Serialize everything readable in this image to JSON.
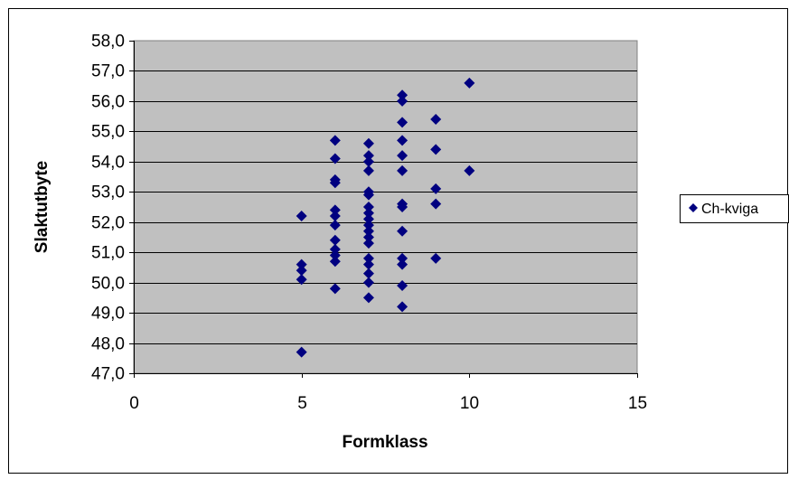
{
  "chart_data": {
    "type": "scatter",
    "title": "",
    "xlabel": "Formklass",
    "ylabel": "Slaktutbyte",
    "xlim": [
      0,
      15
    ],
    "ylim": [
      47.0,
      58.0
    ],
    "x_ticks": [
      "0",
      "5",
      "10",
      "15"
    ],
    "y_ticks": [
      "47,0",
      "48,0",
      "49,0",
      "50,0",
      "51,0",
      "52,0",
      "53,0",
      "54,0",
      "55,0",
      "56,0",
      "57,0",
      "58,0"
    ],
    "grid": "horizontal",
    "plot_background": "#c0c0c0",
    "legend_position": "right",
    "series": [
      {
        "name": "Ch-kviga",
        "color": "#000080",
        "marker": "diamond",
        "points": [
          [
            5,
            47.7
          ],
          [
            5,
            50.1
          ],
          [
            5,
            50.4
          ],
          [
            5,
            50.6
          ],
          [
            5,
            52.2
          ],
          [
            6,
            49.8
          ],
          [
            6,
            50.7
          ],
          [
            6,
            50.9
          ],
          [
            6,
            51.1
          ],
          [
            6,
            51.4
          ],
          [
            6,
            51.9
          ],
          [
            6,
            52.2
          ],
          [
            6,
            52.4
          ],
          [
            6,
            53.3
          ],
          [
            6,
            53.4
          ],
          [
            6,
            54.1
          ],
          [
            6,
            54.7
          ],
          [
            7,
            49.5
          ],
          [
            7,
            50.0
          ],
          [
            7,
            50.3
          ],
          [
            7,
            50.6
          ],
          [
            7,
            50.8
          ],
          [
            7,
            51.3
          ],
          [
            7,
            51.5
          ],
          [
            7,
            51.7
          ],
          [
            7,
            51.9
          ],
          [
            7,
            52.1
          ],
          [
            7,
            52.3
          ],
          [
            7,
            52.5
          ],
          [
            7,
            52.9
          ],
          [
            7,
            53.0
          ],
          [
            7,
            53.7
          ],
          [
            7,
            54.0
          ],
          [
            7,
            54.2
          ],
          [
            7,
            54.6
          ],
          [
            8,
            49.2
          ],
          [
            8,
            49.9
          ],
          [
            8,
            50.6
          ],
          [
            8,
            50.8
          ],
          [
            8,
            51.7
          ],
          [
            8,
            52.5
          ],
          [
            8,
            52.6
          ],
          [
            8,
            53.7
          ],
          [
            8,
            54.2
          ],
          [
            8,
            54.7
          ],
          [
            8,
            55.3
          ],
          [
            8,
            56.0
          ],
          [
            8,
            56.2
          ],
          [
            9,
            50.8
          ],
          [
            9,
            52.6
          ],
          [
            9,
            53.1
          ],
          [
            9,
            54.4
          ],
          [
            9,
            55.4
          ],
          [
            10,
            53.7
          ],
          [
            10,
            56.6
          ]
        ]
      }
    ]
  }
}
